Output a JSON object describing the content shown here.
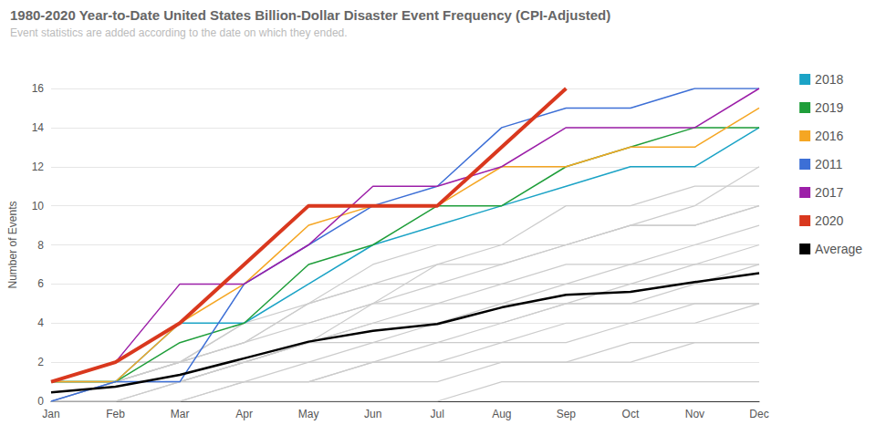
{
  "chart_data": {
    "type": "line",
    "title": "1980-2020 Year-to-Date United States Billion-Dollar Disaster Event Frequency (CPI-Adjusted)",
    "subtitle": "Event statistics are added according to the date on which they ended.",
    "y_label": "Number of Events",
    "categories": [
      "Jan",
      "Feb",
      "Mar",
      "Apr",
      "May",
      "Jun",
      "Jul",
      "Aug",
      "Sep",
      "Oct",
      "Nov",
      "Dec"
    ],
    "ylim": [
      0,
      16
    ],
    "yticks": [
      0,
      2,
      4,
      6,
      8,
      10,
      12,
      14,
      16
    ],
    "grid": true,
    "legend": "right",
    "series": [
      {
        "color": "#cccccc",
        "values": [
          0,
          0,
          0,
          0,
          0,
          0,
          0,
          1,
          1,
          1,
          1,
          1
        ]
      },
      {
        "color": "#cccccc",
        "values": [
          0,
          0,
          0,
          1,
          1,
          1,
          1,
          2,
          2,
          2,
          3,
          3
        ]
      },
      {
        "color": "#cccccc",
        "values": [
          0,
          0,
          1,
          1,
          1,
          2,
          2,
          2,
          2,
          3,
          3,
          3
        ]
      },
      {
        "color": "#cccccc",
        "values": [
          0,
          0,
          0,
          1,
          1,
          2,
          2,
          3,
          3,
          4,
          4,
          5
        ]
      },
      {
        "color": "#cccccc",
        "values": [
          0,
          1,
          1,
          1,
          2,
          2,
          3,
          3,
          4,
          4,
          5,
          5
        ]
      },
      {
        "color": "#cccccc",
        "values": [
          1,
          1,
          1,
          2,
          2,
          3,
          3,
          4,
          5,
          5,
          5,
          5
        ]
      },
      {
        "color": "#cccccc",
        "values": [
          0,
          1,
          1,
          2,
          3,
          3,
          4,
          4,
          5,
          5,
          6,
          6
        ]
      },
      {
        "color": "#cccccc",
        "values": [
          0,
          0,
          1,
          2,
          3,
          4,
          4,
          5,
          5,
          6,
          6,
          7
        ]
      },
      {
        "color": "#cccccc",
        "values": [
          1,
          1,
          2,
          2,
          3,
          4,
          5,
          5,
          6,
          6,
          7,
          7
        ]
      },
      {
        "color": "#cccccc",
        "values": [
          0,
          1,
          1,
          2,
          3,
          5,
          5,
          6,
          6,
          7,
          7,
          8
        ]
      },
      {
        "color": "#cccccc",
        "values": [
          0,
          1,
          2,
          3,
          4,
          5,
          6,
          6,
          7,
          7,
          8,
          9
        ]
      },
      {
        "color": "#cccccc",
        "values": [
          1,
          2,
          2,
          3,
          5,
          6,
          6,
          7,
          8,
          9,
          9,
          10
        ]
      },
      {
        "color": "#cccccc",
        "values": [
          1,
          1,
          2,
          4,
          4,
          5,
          7,
          7,
          8,
          9,
          9,
          10
        ]
      },
      {
        "color": "#cccccc",
        "values": [
          0,
          1,
          2,
          3,
          5,
          7,
          8,
          8,
          10,
          10,
          11,
          11
        ]
      },
      {
        "color": "#cccccc",
        "values": [
          1,
          2,
          2,
          4,
          5,
          6,
          7,
          8,
          8,
          9,
          10,
          12
        ]
      },
      {
        "name": "2018",
        "color": "#1ba3c6",
        "values": [
          1,
          1,
          4,
          4,
          6,
          8,
          9,
          10,
          11,
          12,
          12,
          14
        ]
      },
      {
        "name": "2019",
        "color": "#1f9e3a",
        "values": [
          1,
          1,
          3,
          4,
          7,
          8,
          10,
          10,
          12,
          13,
          14,
          14
        ]
      },
      {
        "name": "2016",
        "color": "#f5a623",
        "values": [
          1,
          1,
          4,
          6,
          9,
          10,
          10,
          12,
          12,
          13,
          13,
          15
        ]
      },
      {
        "name": "2011",
        "color": "#3d6fd6",
        "values": [
          0,
          1,
          1,
          6,
          8,
          10,
          11,
          14,
          15,
          15,
          16,
          16
        ]
      },
      {
        "name": "2017",
        "color": "#9c1fa8",
        "values": [
          1,
          2,
          6,
          6,
          8,
          11,
          11,
          12,
          14,
          14,
          14,
          16
        ]
      },
      {
        "name": "2020",
        "color": "#d9381e",
        "line_style": "thick",
        "values": [
          1,
          2,
          4,
          7,
          10,
          10,
          10,
          13,
          16,
          null,
          null,
          null
        ]
      },
      {
        "name": "Average",
        "color": "#000000",
        "line_style": "thick",
        "values": [
          0.45,
          0.75,
          1.35,
          2.2,
          3.05,
          3.6,
          3.95,
          4.8,
          5.45,
          5.6,
          6.1,
          6.55
        ]
      }
    ]
  }
}
